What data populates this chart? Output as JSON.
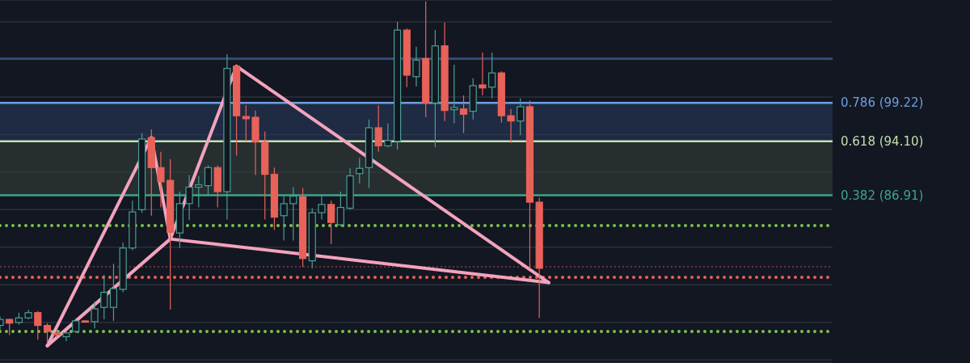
{
  "chart_data": {
    "type": "candlestick",
    "categories": [
      null,
      null,
      null,
      null,
      null,
      null,
      null,
      null,
      null,
      null,
      null,
      null,
      null,
      null,
      null,
      null,
      null,
      null,
      null,
      null,
      null,
      null,
      null,
      null,
      null,
      null,
      null,
      null,
      null,
      null,
      null,
      null,
      null,
      null,
      null,
      null,
      null,
      null,
      null,
      null,
      null,
      null,
      null,
      null,
      null,
      null,
      null,
      null,
      null,
      null,
      null,
      null,
      null,
      null,
      null,
      null,
      null,
      null,
      null,
      null,
      null,
      null,
      null,
      null,
      null,
      null,
      null,
      null,
      null,
      null,
      null,
      null,
      null,
      null,
      null,
      null,
      null,
      null,
      null,
      null,
      null,
      null,
      null,
      null,
      null,
      null,
      null,
      null,
      null
    ],
    "ohlc": [
      [
        69.6,
        70.8,
        69.0,
        70.4
      ],
      [
        70.4,
        70.5,
        68.3,
        69.9
      ],
      [
        70.0,
        71.3,
        69.7,
        70.6
      ],
      [
        70.6,
        71.7,
        70.4,
        71.3
      ],
      [
        71.3,
        71.5,
        67.7,
        69.6
      ],
      [
        69.6,
        69.9,
        67.2,
        68.8
      ],
      [
        68.5,
        68.8,
        68.0,
        68.4
      ],
      [
        68.1,
        68.8,
        67.5,
        68.6
      ],
      [
        68.8,
        70.4,
        68.6,
        70.2
      ],
      [
        70.2,
        70.3,
        70.0,
        70.1
      ],
      [
        70.1,
        72.8,
        69.2,
        71.8
      ],
      [
        72.0,
        76.3,
        70.4,
        74.0
      ],
      [
        72.0,
        77.8,
        70.2,
        74.5
      ],
      [
        74.4,
        80.6,
        74.0,
        79.9
      ],
      [
        79.9,
        86.2,
        79.6,
        84.7
      ],
      [
        85.0,
        95.2,
        84.6,
        94.4
      ],
      [
        94.6,
        95.7,
        84.2,
        90.6
      ],
      [
        90.6,
        92.7,
        85.3,
        88.7
      ],
      [
        88.9,
        91.7,
        71.7,
        82.0
      ],
      [
        81.9,
        87.4,
        79.9,
        85.8
      ],
      [
        85.8,
        89.6,
        83.6,
        88.0
      ],
      [
        88.0,
        89.5,
        85.3,
        88.3
      ],
      [
        88.2,
        90.9,
        86.9,
        90.6
      ],
      [
        90.6,
        90.9,
        85.3,
        87.4
      ],
      [
        87.4,
        105.7,
        83.7,
        103.8
      ],
      [
        104.1,
        104.3,
        92.2,
        97.5
      ],
      [
        97.4,
        98.9,
        94.1,
        97.1
      ],
      [
        97.3,
        98.2,
        89.6,
        94.0
      ],
      [
        94.0,
        95.4,
        83.7,
        89.7
      ],
      [
        89.7,
        90.6,
        82.3,
        84.0
      ],
      [
        84.2,
        86.8,
        80.9,
        85.8
      ],
      [
        85.8,
        88.0,
        80.9,
        86.8
      ],
      [
        86.7,
        87.9,
        77.4,
        78.5
      ],
      [
        78.2,
        85.2,
        77.2,
        84.6
      ],
      [
        84.6,
        86.9,
        83.7,
        85.7
      ],
      [
        85.7,
        86.2,
        80.4,
        83.3
      ],
      [
        83.0,
        87.4,
        82.8,
        85.3
      ],
      [
        85.2,
        90.5,
        85.0,
        89.5
      ],
      [
        89.8,
        91.9,
        88.5,
        90.5
      ],
      [
        90.6,
        97.0,
        87.9,
        95.9
      ],
      [
        95.9,
        98.9,
        92.7,
        93.5
      ],
      [
        93.5,
        96.5,
        93.3,
        94.2
      ],
      [
        94.1,
        110.0,
        93.0,
        108.9
      ],
      [
        108.9,
        109.1,
        101.3,
        102.9
      ],
      [
        102.7,
        106.7,
        101.4,
        104.9
      ],
      [
        105.1,
        112.7,
        97.3,
        99.2
      ],
      [
        99.2,
        108.9,
        93.3,
        106.8
      ],
      [
        106.8,
        109.9,
        96.8,
        98.2
      ],
      [
        98.3,
        104.3,
        96.5,
        98.6
      ],
      [
        98.4,
        100.2,
        95.2,
        97.7
      ],
      [
        98.1,
        102.5,
        97.0,
        101.5
      ],
      [
        101.6,
        105.9,
        100.2,
        101.2
      ],
      [
        101.3,
        105.9,
        99.8,
        103.2
      ],
      [
        103.2,
        103.4,
        96.6,
        97.5
      ],
      [
        97.5,
        98.4,
        93.9,
        96.8
      ],
      [
        96.8,
        99.8,
        94.9,
        98.7
      ],
      [
        98.7,
        99.5,
        77.1,
        86.0
      ],
      [
        86.0,
        86.6,
        70.6,
        77.2
      ],
      null,
      null,
      null,
      null,
      null,
      null,
      null,
      null,
      null,
      null,
      null,
      null,
      null,
      null,
      null,
      null,
      null,
      null,
      null,
      null,
      null,
      null,
      null,
      null,
      null,
      null,
      null,
      null,
      null,
      null,
      null
    ],
    "colors": [
      "#4a9e93",
      "#e8625a",
      "#4a9e93",
      "#4a9e93",
      "#e8625a",
      "#e8625a",
      "#e8625a",
      "#4a9e93",
      "#4a9e93",
      "#e8625a",
      "#4a9e93",
      "#4a9e93",
      "#4a9e93",
      "#4a9e93",
      "#4a9e93",
      "#4a9e93",
      "#e8625a",
      "#e8625a",
      "#e8625a",
      "#4a9e93",
      "#4a9e93",
      "#4a9e93",
      "#4a9e93",
      "#e8625a",
      "#4a9e93",
      "#e8625a",
      "#e8625a",
      "#e8625a",
      "#e8625a",
      "#e8625a",
      "#4a9e93",
      "#4a9e93",
      "#e8625a",
      "#4a9e93",
      "#4a9e93",
      "#e8625a",
      "#4a9e93",
      "#4a9e93",
      "#4a9e93",
      "#4a9e93",
      "#e8625a",
      "#4a9e93",
      "#4a9e93",
      "#e8625a",
      "#4a9e93",
      "#e8625a",
      "#4a9e93",
      "#e8625a",
      "#4a9e93",
      "#e8625a",
      "#4a9e93",
      "#e8625a",
      "#4a9e93",
      "#e8625a",
      "#e8625a",
      "#4a9e93",
      "#e8625a",
      "#e8625a",
      null,
      null,
      null,
      null,
      null,
      null,
      null,
      null,
      null,
      null,
      null,
      null,
      null,
      null,
      null,
      null,
      null,
      null,
      null,
      null,
      null,
      null,
      null,
      null,
      null,
      null,
      null,
      null,
      null,
      null,
      null
    ],
    "ylim": [
      64.6,
      112.9
    ],
    "yticks": [
      {
        "value": 65,
        "label": null
      },
      {
        "value": 70,
        "label": null
      },
      {
        "value": 75,
        "label": null
      },
      {
        "value": 80,
        "label": null
      },
      {
        "value": 85,
        "label": null
      },
      {
        "value": 90,
        "label": null
      },
      {
        "value": 95,
        "label": null
      },
      {
        "value": 100,
        "label": null
      },
      {
        "value": 105,
        "label": null
      },
      {
        "value": 110,
        "label": null
      }
    ],
    "grid": "y",
    "tick_labels": false,
    "marker": "none",
    "series": [
      {
        "type": "line",
        "color": "#f3a3bd",
        "values": [
          null,
          null,
          null,
          null,
          null,
          66.9,
          null,
          null,
          null,
          null,
          null,
          null,
          null,
          null,
          null,
          null,
          94.6,
          null,
          81.1,
          null,
          null,
          null,
          null,
          null,
          null,
          104.1,
          null,
          null,
          null,
          null,
          null,
          null,
          null,
          null,
          null,
          null,
          null,
          null,
          null,
          null,
          null,
          null,
          null,
          null,
          null,
          null,
          null,
          null,
          null,
          null,
          null,
          null,
          null,
          null,
          null,
          null,
          null,
          null,
          75.3,
          null,
          null,
          null,
          null,
          null,
          null,
          null,
          null,
          null,
          null,
          null,
          null,
          null,
          null,
          null,
          null,
          null,
          null,
          null,
          null,
          null,
          null,
          null,
          null,
          null,
          null,
          null,
          null,
          null,
          null
        ]
      },
      {
        "type": "line",
        "color": "#f3a3bd",
        "values": [
          null,
          null,
          null,
          null,
          null,
          66.9,
          null,
          null,
          null,
          null,
          null,
          null,
          null,
          null,
          null,
          null,
          null,
          null,
          81.1,
          null,
          null,
          null,
          null,
          null,
          null,
          null,
          null,
          null,
          null,
          null,
          null,
          null,
          null,
          null,
          null,
          null,
          null,
          null,
          null,
          null,
          null,
          null,
          null,
          null,
          null,
          null,
          null,
          null,
          null,
          null,
          null,
          null,
          null,
          null,
          null,
          null,
          null,
          null,
          75.3,
          null,
          null,
          null,
          null,
          null,
          null,
          null,
          null,
          null,
          null,
          null,
          null,
          null,
          null,
          null,
          null,
          null,
          null,
          null,
          null,
          null,
          null,
          null,
          null,
          null,
          null,
          null,
          null,
          null,
          null
        ]
      }
    ],
    "bands": [
      {
        "axis": "y",
        "from": 94.1,
        "to": 99.22,
        "color": "#27385a"
      },
      {
        "axis": "y",
        "from": 86.91,
        "to": 94.1,
        "color": "#333d3b"
      }
    ],
    "ref_lines": [
      {
        "axis": "y",
        "value": 99.22,
        "label": "0.786 (99.22)",
        "color": "#6e9fe0"
      },
      {
        "axis": "y",
        "value": 94.1,
        "label": "0.618 (94.10)",
        "color": "#c6dfae"
      },
      {
        "axis": "y",
        "value": 86.91,
        "label": "0.382 (86.91)",
        "color": "#3fa58a"
      },
      {
        "axis": "y",
        "value": 105.1,
        "color": "#34507e"
      },
      {
        "axis": "y",
        "value": 82.9,
        "color": "#7cc04f",
        "line_style": "dotted"
      },
      {
        "axis": "y",
        "value": 68.8,
        "color": "#7cc04f",
        "line_style": "dotted"
      },
      {
        "axis": "y",
        "value": 76.0,
        "color": "#e8625a",
        "line_style": "dotted"
      },
      {
        "axis": "y",
        "value": 77.4,
        "color": "#b8524b",
        "line_style": "dashed"
      }
    ]
  }
}
